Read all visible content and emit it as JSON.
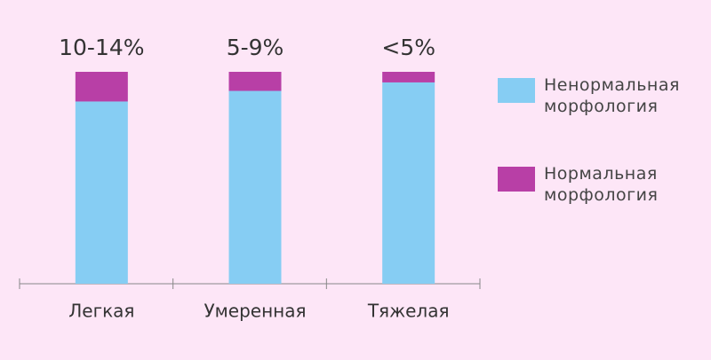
{
  "chart_data": {
    "type": "stacked_bar",
    "categories": [
      "Легкая",
      "Умеренная",
      "Тяжелая"
    ],
    "annotations": [
      "10-14%",
      "5-9%",
      "<5%"
    ],
    "series": [
      {
        "name": "Ненормальная морфология",
        "color": "#86cdf3",
        "values": [
          86,
          91,
          95
        ]
      },
      {
        "name": "Нормальная морфология",
        "color": "#b83fa6",
        "values": [
          14,
          9,
          5
        ]
      }
    ],
    "ylim": [
      0,
      100
    ]
  }
}
